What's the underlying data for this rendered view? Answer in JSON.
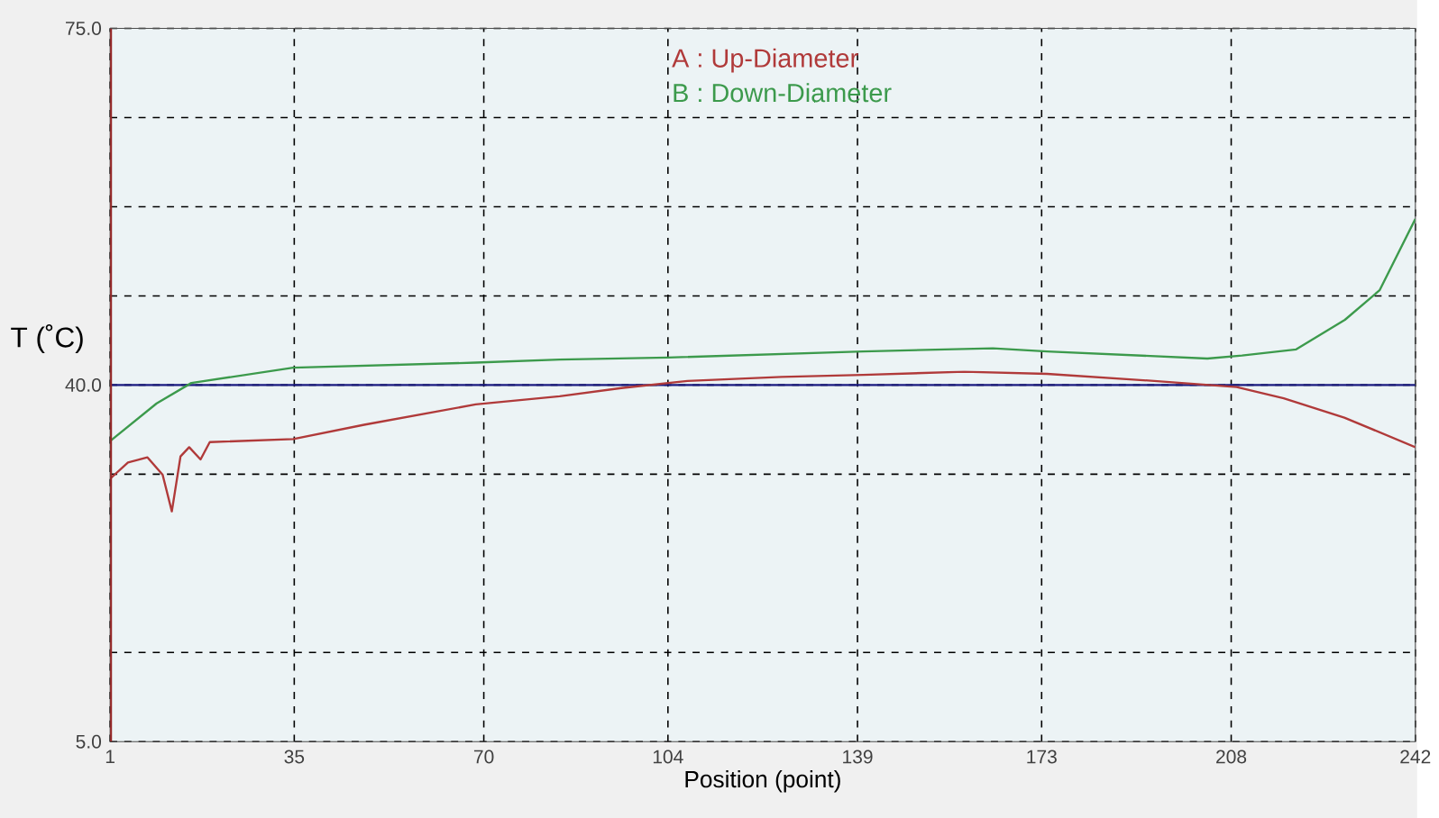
{
  "chart_data": {
    "type": "line",
    "xlabel": "Position (point)",
    "ylabel": "T (˚C)",
    "xlim": [
      1,
      242
    ],
    "ylim": [
      5,
      75
    ],
    "xticks": [
      1,
      35,
      70,
      104,
      139,
      173,
      208,
      242
    ],
    "yticks": [
      {
        "value": 5,
        "label": "5.0"
      },
      {
        "value": 13.75,
        "label": null
      },
      {
        "value": 31.25,
        "label": null
      },
      {
        "value": 40,
        "label": "40.0"
      },
      {
        "value": 48.75,
        "label": null
      },
      {
        "value": 57.5,
        "label": null
      },
      {
        "value": 66.25,
        "label": null
      },
      {
        "value": 75,
        "label": "75.0"
      }
    ],
    "grid": true,
    "legend": "top",
    "marker": "none",
    "line_style": "solid",
    "ref_lines": [
      {
        "axis": "y",
        "value": 40,
        "color": "#1a1a80"
      }
    ],
    "series": [
      {
        "name": "A : Up-Diameter",
        "color": "#b03a3a",
        "x": [
          1,
          4.3,
          7.9,
          10.7,
          12.4,
          14,
          15.6,
          17.7,
          19.4,
          34.8,
          47.9,
          68.5,
          84,
          95.4,
          107.6,
          125,
          140,
          158.7,
          174,
          193.8,
          209,
          217.7,
          228.9,
          242
        ],
        "values": [
          30.8,
          32.4,
          32.9,
          31.2,
          27.6,
          33.0,
          33.9,
          32.7,
          34.4,
          34.7,
          36.1,
          38.1,
          38.9,
          39.7,
          40.4,
          40.8,
          41.0,
          41.3,
          41.1,
          40.4,
          39.8,
          38.7,
          36.8,
          33.9
        ]
      },
      {
        "name": "B : Down-Diameter",
        "color": "#3c9a4c",
        "x": [
          1,
          9.6,
          16,
          34.8,
          68.5,
          84,
          104,
          140,
          164,
          174,
          203.6,
          210,
          220,
          229,
          235.4,
          242
        ],
        "values": [
          34.5,
          38.2,
          40.2,
          41.7,
          42.2,
          42.5,
          42.7,
          43.3,
          43.6,
          43.3,
          42.6,
          42.9,
          43.5,
          46.4,
          49.3,
          56.3
        ]
      }
    ]
  }
}
